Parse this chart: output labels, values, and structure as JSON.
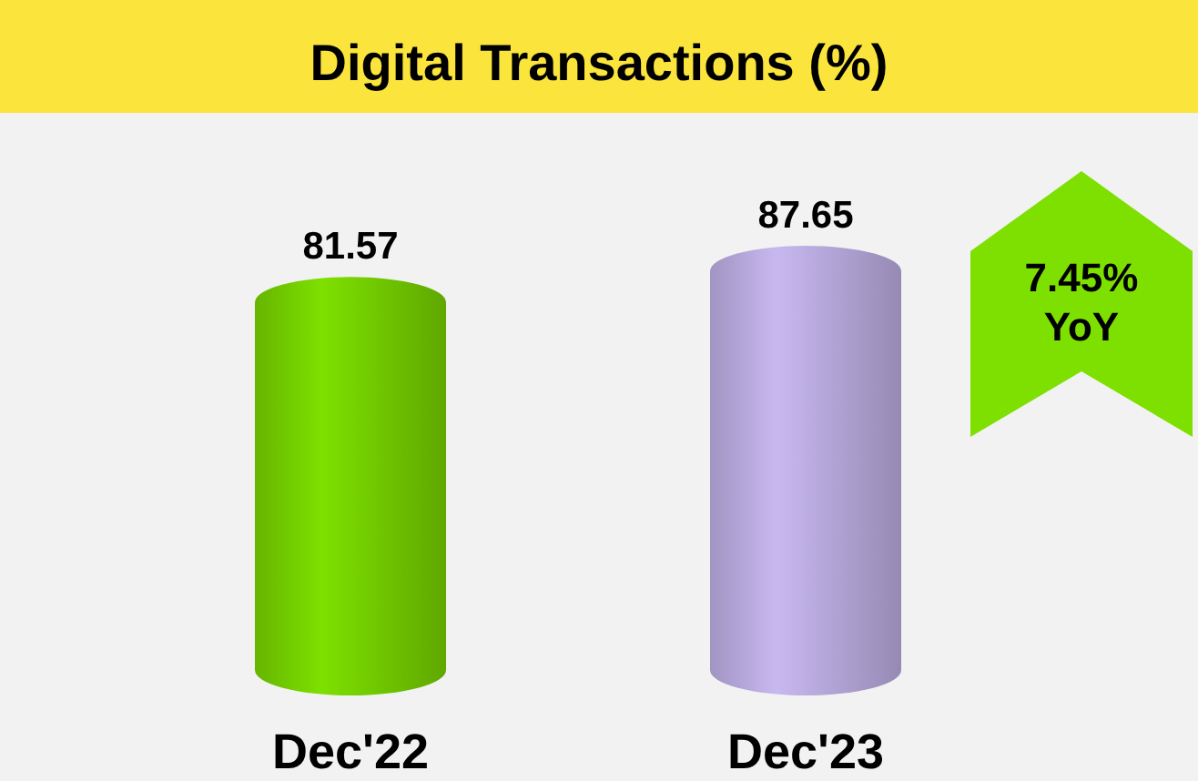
{
  "chart_data": {
    "type": "bar",
    "title": "Digital Transactions (%)",
    "categories": [
      "Dec'22",
      "Dec'23"
    ],
    "values": [
      81.57,
      87.65
    ],
    "colors": [
      "#7ee000",
      "#c8b8f0"
    ],
    "data_labels": true,
    "annotations": [
      "7.45% YoY"
    ]
  }
}
